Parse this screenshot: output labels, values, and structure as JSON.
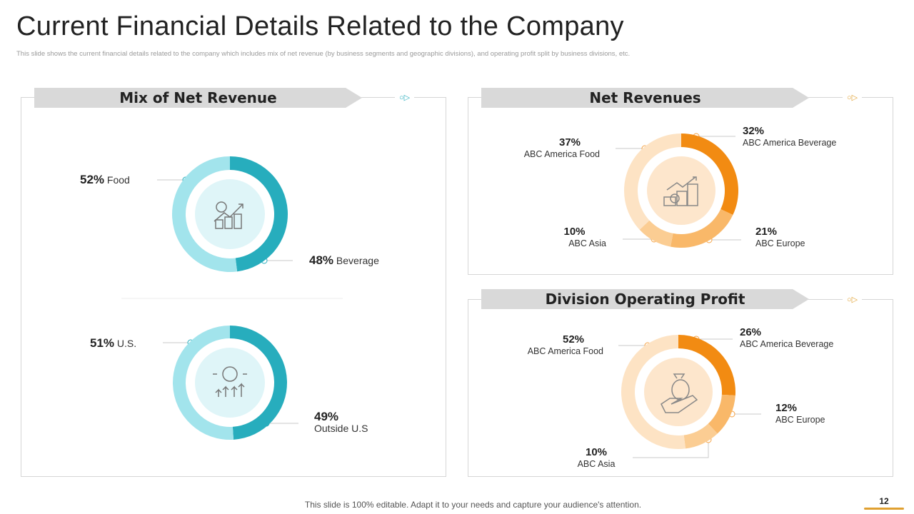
{
  "title": "Current Financial Details Related to the Company",
  "subtitle": "This slide shows the current financial details related to the company which includes mix of net revenue (by business segments and geographic divisions), and operating profit split by business divisions, etc.",
  "footer": "This slide is 100% editable. Adapt it to your needs and capture your audience's attention.",
  "page_number": "12",
  "deco_icon": "circle-triangle-icon",
  "colors": {
    "teal_dark": "#27adbd",
    "teal_light": "#a2e4ec",
    "orange_1": "#f28b12",
    "orange_2": "#f9b869",
    "orange_3": "#fbcd93",
    "orange_4": "#fde3c4",
    "page_bar": "#e0a030"
  },
  "panels": {
    "mix": {
      "title": "Mix of Net Revenue"
    },
    "net": {
      "title": "Net Revenues"
    },
    "div": {
      "title": "Division Operating Profit"
    }
  },
  "chart_data": [
    {
      "type": "pie",
      "variant": "donut",
      "panel": "Mix of Net Revenue",
      "center_icon": "money-growth-icon",
      "categories": [
        "Beverage",
        "Food"
      ],
      "values": [
        48,
        52
      ],
      "labels": [
        "48%",
        "52%"
      ],
      "colors": [
        "#27adbd",
        "#a2e4ec"
      ]
    },
    {
      "type": "pie",
      "variant": "donut",
      "panel": "Mix of Net Revenue",
      "center_icon": "dollar-coin-growth-icon",
      "categories": [
        "Outside U.S",
        "U.S."
      ],
      "values": [
        49,
        51
      ],
      "labels": [
        "49%",
        "51%"
      ],
      "colors": [
        "#27adbd",
        "#a2e4ec"
      ]
    },
    {
      "type": "pie",
      "variant": "donut",
      "panel": "Net Revenues",
      "center_icon": "coins-growth-icon",
      "categories": [
        "ABC America Beverage",
        "ABC Europe",
        "ABC Asia",
        "ABC America Food"
      ],
      "values": [
        32,
        21,
        10,
        37
      ],
      "labels": [
        "32%",
        "21%",
        "10%",
        "37%"
      ],
      "colors": [
        "#f28b12",
        "#f9b869",
        "#fbcd93",
        "#fde3c4"
      ]
    },
    {
      "type": "pie",
      "variant": "donut",
      "panel": "Division Operating Profit",
      "center_icon": "money-bag-hand-icon",
      "categories": [
        "ABC America Beverage",
        "ABC Europe",
        "ABC Asia",
        "ABC America Food"
      ],
      "values": [
        26,
        12,
        10,
        52
      ],
      "labels": [
        "26%",
        "12%",
        "10%",
        "52%"
      ],
      "colors": [
        "#f28b12",
        "#f9b869",
        "#fbcd93",
        "#fde3c4"
      ]
    }
  ]
}
